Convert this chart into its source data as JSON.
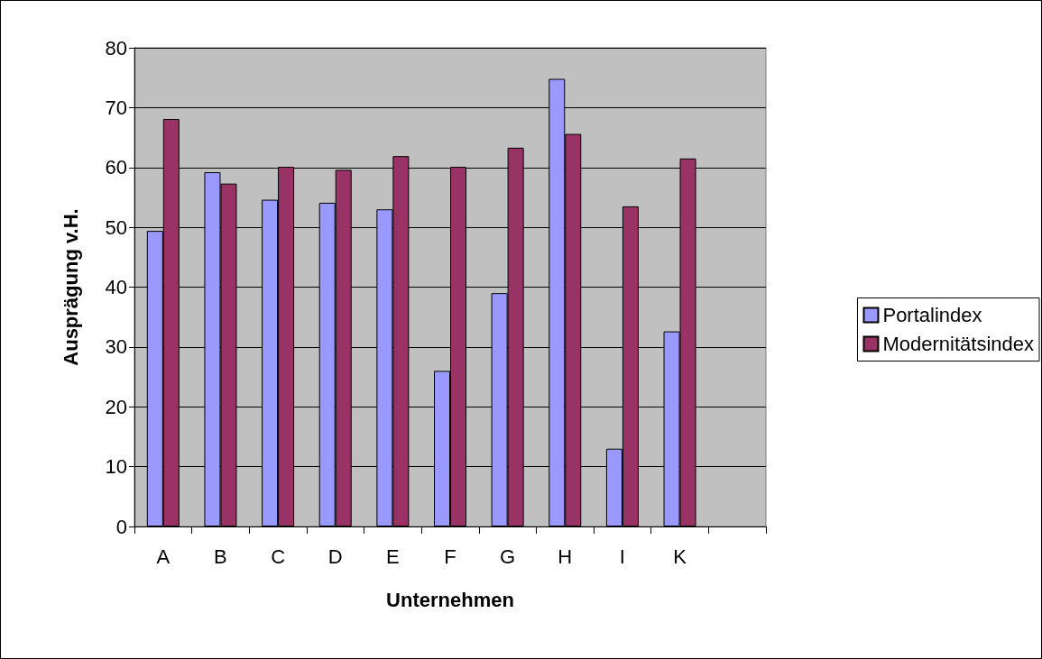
{
  "chart_data": {
    "type": "bar",
    "xlabel": "Unternehmen",
    "ylabel": "Ausprägung v.H.",
    "categories": [
      "A",
      "B",
      "C",
      "D",
      "E",
      "F",
      "G",
      "H",
      "I",
      "K",
      null
    ],
    "series": [
      {
        "name": "Portalindex",
        "color": "#9999ff",
        "values": [
          49.4,
          59.2,
          54.6,
          54.1,
          53.0,
          26.0,
          39.0,
          74.8,
          13.0,
          32.6,
          null
        ]
      },
      {
        "name": "Modernitätsindex",
        "color": "#993366",
        "values": [
          68.1,
          57.3,
          60.1,
          59.6,
          61.9,
          60.1,
          63.3,
          65.6,
          53.5,
          61.5,
          null
        ]
      }
    ],
    "ylim": [
      0,
      80
    ],
    "yticks": [
      0,
      10,
      20,
      30,
      40,
      50,
      60,
      70,
      80
    ],
    "grid": "y",
    "legend": "right"
  }
}
